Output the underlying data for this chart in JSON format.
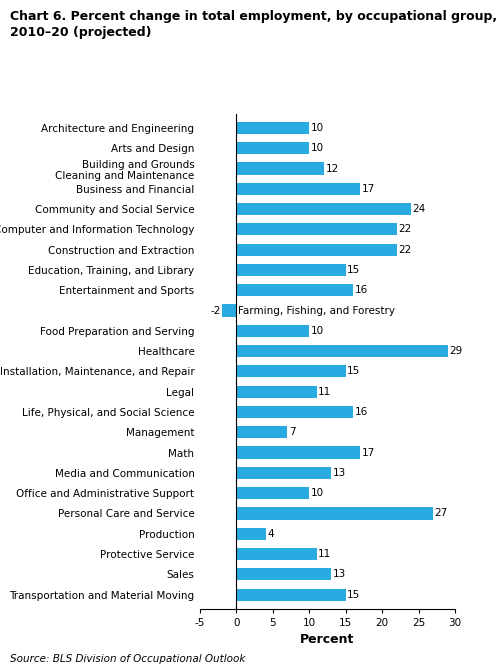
{
  "title": "Chart 6. Percent change in total employment, by occupational group,\n2010–20 (projected)",
  "categories": [
    "Architecture and Engineering",
    "Arts and Design",
    "Building and Grounds\nCleaning and Maintenance",
    "Business and Financial",
    "Community and Social Service",
    "Computer and Information Technology",
    "Construction and Extraction",
    "Education, Training, and Library",
    "Entertainment and Sports",
    "Farming, Fishing, and Forestry",
    "Food Preparation and Serving",
    "Healthcare",
    "Installation, Maintenance, and Repair",
    "Legal",
    "Life, Physical, and Social Science",
    "Management",
    "Math",
    "Media and Communication",
    "Office and Administrative Support",
    "Personal Care and Service",
    "Production",
    "Protective Service",
    "Sales",
    "Transportation and Material Moving"
  ],
  "values": [
    10,
    10,
    12,
    17,
    24,
    22,
    22,
    15,
    16,
    -2,
    10,
    29,
    15,
    11,
    16,
    7,
    17,
    13,
    10,
    27,
    4,
    11,
    13,
    15
  ],
  "bar_color": "#29ABE2",
  "xlim": [
    -5,
    30
  ],
  "xticks": [
    -5,
    0,
    5,
    10,
    15,
    20,
    25,
    30
  ],
  "xlabel": "Percent",
  "source": "Source: BLS Division of Occupational Outlook",
  "farming_label": "Farming, Fishing, and Forestry",
  "title_fontsize": 9,
  "label_fontsize": 7.5,
  "value_fontsize": 7.5,
  "xlabel_fontsize": 9,
  "source_fontsize": 7.5
}
